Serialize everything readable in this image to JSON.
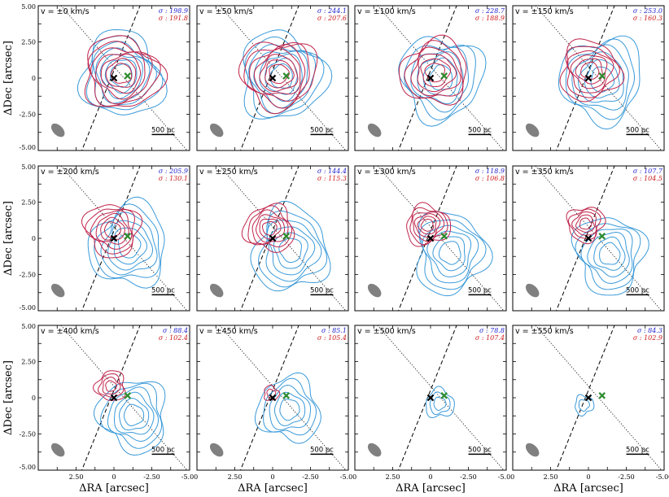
{
  "figure": {
    "xlabel": "ΔRA [arcsec]",
    "ylabel": "ΔDec [arcsec]"
  },
  "colors": {
    "blue_contour": "#3a9ad9",
    "red_contour": "#c0244a",
    "blue_text": "#1f1fcc",
    "red_text": "#cc1a1a",
    "beam": "#808080",
    "marker_black": "#000000",
    "marker_green": "#2e8b2e"
  },
  "chart_data": {
    "type": "contour",
    "xlim": [
      5.0,
      -5.0
    ],
    "ylim": [
      -5.0,
      5.0
    ],
    "x_ticks": [
      2.5,
      0,
      -2.5,
      -5.0
    ],
    "x_tick_labels": [
      "2.50",
      "0",
      "-2.50",
      "-5.00"
    ],
    "y_ticks": [
      5.0,
      2.5,
      0,
      -2.5,
      -5.0
    ],
    "y_tick_labels": [
      "5.00",
      "2.50",
      "0",
      "-2.50",
      "-5.00"
    ],
    "scale_bar_label": "500 pc",
    "markers": {
      "nucleus_black": {
        "ra": 0.0,
        "dec": 0.0
      },
      "nucleus_green": {
        "ra": -0.9,
        "dec": 0.15
      }
    },
    "panels": [
      {
        "velocity": "v = ±0 km/s",
        "sigma_blue": "σ : 198.9",
        "sigma_red": "σ : 191.8",
        "blue_center": [
          -0.5,
          0.2
        ],
        "blue_size": 2.6,
        "blue_levels": 7,
        "red_center": [
          -0.5,
          0.3
        ],
        "red_size": 2.5,
        "red_levels": 7
      },
      {
        "velocity": "v = ±50 km/s",
        "sigma_blue": "σ : 244.1",
        "sigma_red": "σ : 207.6",
        "blue_center": [
          -0.6,
          0.1
        ],
        "blue_size": 2.7,
        "blue_levels": 7,
        "red_center": [
          -0.4,
          0.3
        ],
        "red_size": 2.4,
        "red_levels": 7
      },
      {
        "velocity": "v = ±100 km/s",
        "sigma_blue": "σ : 228.7",
        "sigma_red": "σ : 188.9",
        "blue_center": [
          -0.7,
          0.0
        ],
        "blue_size": 2.6,
        "blue_levels": 6,
        "red_center": [
          -0.3,
          0.4
        ],
        "red_size": 2.2,
        "red_levels": 6
      },
      {
        "velocity": "v = ±150 km/s",
        "sigma_blue": "σ : 253.0",
        "sigma_red": "σ : 160.3",
        "blue_center": [
          -0.9,
          -0.1
        ],
        "blue_size": 2.6,
        "blue_levels": 6,
        "red_center": [
          -0.1,
          0.5
        ],
        "red_size": 2.0,
        "red_levels": 6
      },
      {
        "velocity": "v = ±200 km/s",
        "sigma_blue": "σ : 205.9",
        "sigma_red": "σ : 130.1",
        "blue_center": [
          -1.0,
          -0.5
        ],
        "blue_size": 2.5,
        "blue_levels": 6,
        "red_center": [
          0.1,
          0.6
        ],
        "red_size": 1.8,
        "red_levels": 6
      },
      {
        "velocity": "v = ±250 km/s",
        "sigma_blue": "σ : 144.4",
        "sigma_red": "σ : 115.3",
        "blue_center": [
          -1.2,
          -0.8
        ],
        "blue_size": 2.5,
        "blue_levels": 6,
        "red_center": [
          0.2,
          0.7
        ],
        "red_size": 1.6,
        "red_levels": 6
      },
      {
        "velocity": "v = ±300 km/s",
        "sigma_blue": "σ : 118.9",
        "sigma_red": "σ : 106.8",
        "blue_center": [
          -1.3,
          -1.0
        ],
        "blue_size": 2.4,
        "blue_levels": 6,
        "red_center": [
          0.2,
          0.9
        ],
        "red_size": 1.4,
        "red_levels": 6
      },
      {
        "velocity": "v = ±350 km/s",
        "sigma_blue": "σ : 107.7",
        "sigma_red": "σ : 104.5",
        "blue_center": [
          -1.4,
          -1.1
        ],
        "blue_size": 2.3,
        "blue_levels": 6,
        "red_center": [
          0.2,
          1.0
        ],
        "red_size": 1.2,
        "red_levels": 5
      },
      {
        "velocity": "v = ±400 km/s",
        "sigma_blue": "σ : 88.4",
        "sigma_red": "σ : 102.4",
        "blue_center": [
          -1.3,
          -1.2
        ],
        "blue_size": 2.2,
        "blue_levels": 6,
        "red_center": [
          0.2,
          0.8
        ],
        "red_size": 1.0,
        "red_levels": 4
      },
      {
        "velocity": "v = ±450 km/s",
        "sigma_blue": "σ : 85.1",
        "sigma_red": "σ : 105.4",
        "blue_center": [
          -1.1,
          -0.8
        ],
        "blue_size": 2.0,
        "blue_levels": 5,
        "red_center": [
          0.1,
          0.3
        ],
        "red_size": 0.5,
        "red_levels": 2
      },
      {
        "velocity": "v = ±500 km/s",
        "sigma_blue": "σ : 78.8",
        "sigma_red": "σ : 107.4",
        "blue_center": [
          -0.6,
          -0.4
        ],
        "blue_size": 0.9,
        "blue_levels": 3,
        "red_center": [
          0.0,
          0.0
        ],
        "red_size": 0.0,
        "red_levels": 0
      },
      {
        "velocity": "v = ±550 km/s",
        "sigma_blue": "σ : 84.3",
        "sigma_red": "σ : 102.9",
        "blue_center": [
          0.3,
          -0.5
        ],
        "blue_size": 0.6,
        "blue_levels": 2,
        "red_center": [
          0.0,
          0.0
        ],
        "red_size": 0.0,
        "red_levels": 0
      }
    ]
  }
}
